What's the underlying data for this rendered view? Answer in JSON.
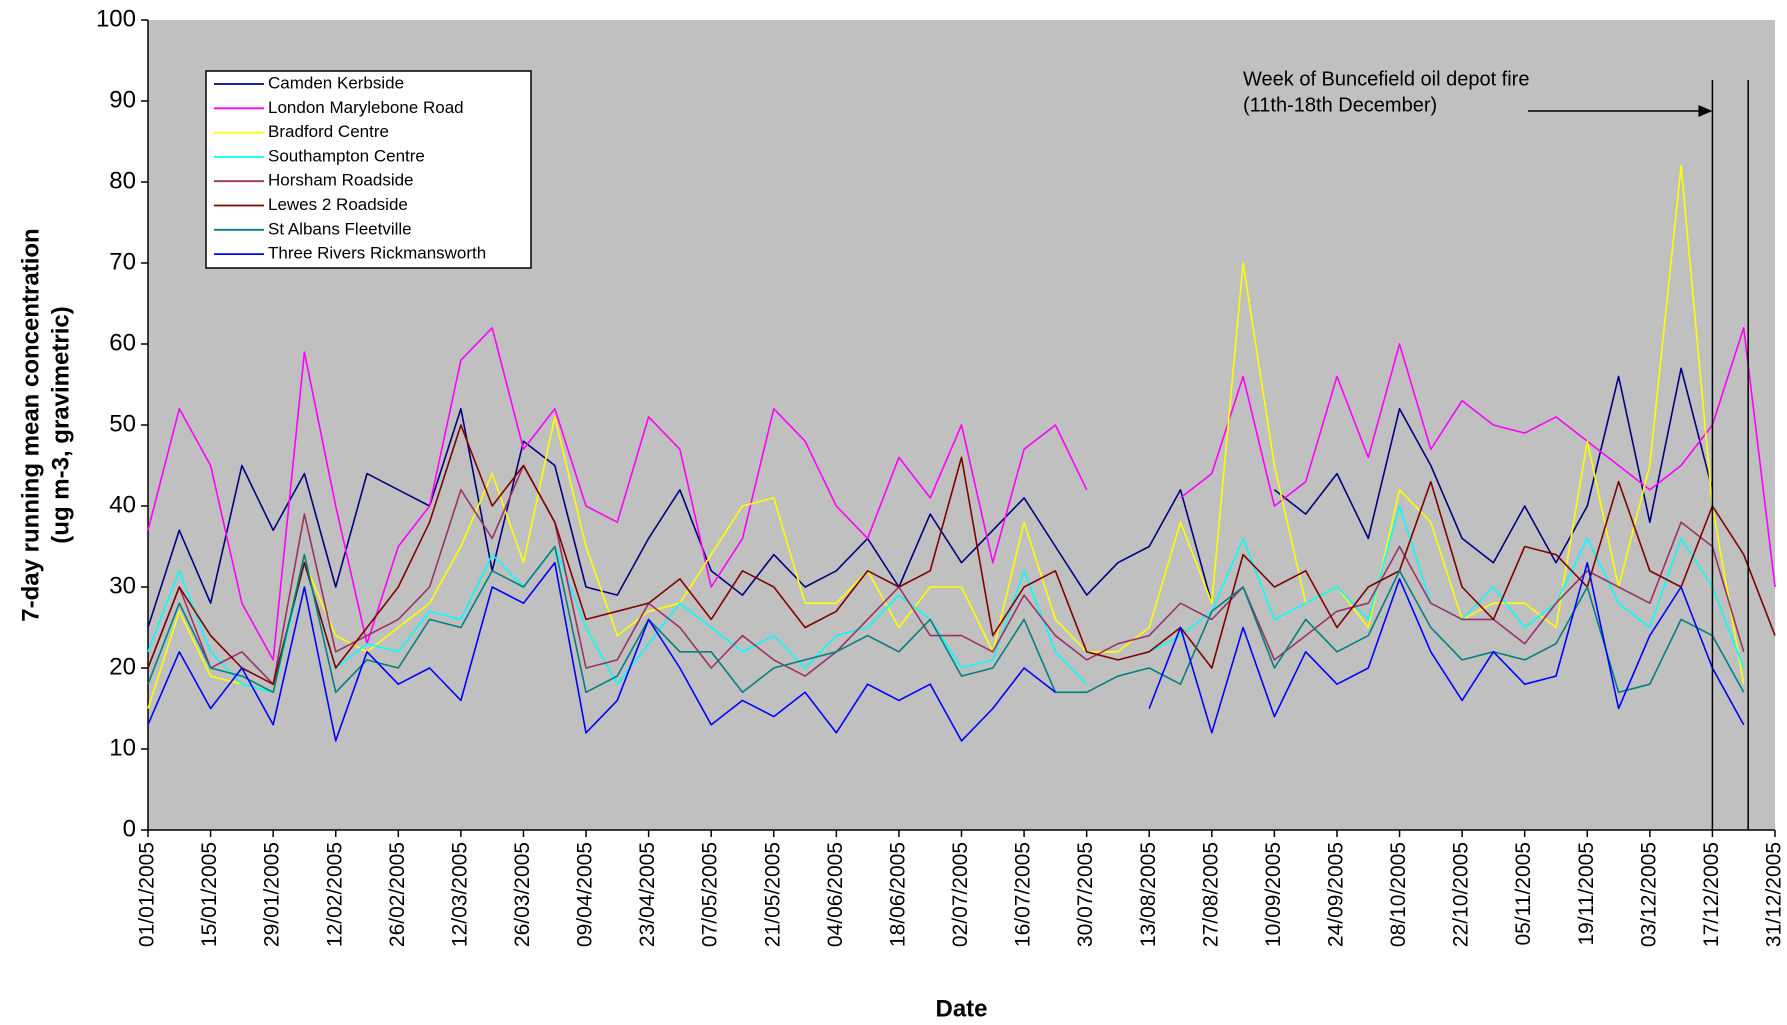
{
  "chart_data": {
    "type": "line",
    "ylabel": [
      "7-day running mean concentration",
      "(ug m-3, gravimetric)"
    ],
    "xlabel": "Date",
    "ylim": [
      0,
      100
    ],
    "yticks": [
      0,
      10,
      20,
      30,
      40,
      50,
      60,
      70,
      80,
      90,
      100
    ],
    "xlim": [
      "01/01/2005",
      "31/12/2005"
    ],
    "xticks": [
      "01/01/2005",
      "15/01/2005",
      "29/01/2005",
      "12/02/2005",
      "26/02/2005",
      "12/03/2005",
      "26/03/2005",
      "09/04/2005",
      "23/04/2005",
      "07/05/2005",
      "21/05/2005",
      "04/06/2005",
      "18/06/2005",
      "02/07/2005",
      "16/07/2005",
      "30/07/2005",
      "13/08/2005",
      "27/08/2005",
      "10/09/2005",
      "24/09/2005",
      "08/10/2005",
      "22/10/2005",
      "05/11/2005",
      "19/11/2005",
      "03/12/2005",
      "17/12/2005",
      "31/12/2005"
    ],
    "grid": false,
    "legend": "upper-left",
    "background": "#c0c0c0",
    "x": [
      "01/01/2005",
      "08/01/2005",
      "15/01/2005",
      "22/01/2005",
      "29/01/2005",
      "05/02/2005",
      "12/02/2005",
      "19/02/2005",
      "26/02/2005",
      "05/03/2005",
      "12/03/2005",
      "19/03/2005",
      "26/03/2005",
      "02/04/2005",
      "09/04/2005",
      "16/04/2005",
      "23/04/2005",
      "30/04/2005",
      "07/05/2005",
      "14/05/2005",
      "21/05/2005",
      "28/05/2005",
      "04/06/2005",
      "11/06/2005",
      "18/06/2005",
      "25/06/2005",
      "02/07/2005",
      "09/07/2005",
      "16/07/2005",
      "23/07/2005",
      "30/07/2005",
      "06/08/2005",
      "13/08/2005",
      "20/08/2005",
      "27/08/2005",
      "03/09/2005",
      "10/09/2005",
      "17/09/2005",
      "24/09/2005",
      "01/10/2005",
      "08/10/2005",
      "15/10/2005",
      "22/10/2005",
      "29/10/2005",
      "05/11/2005",
      "12/11/2005",
      "19/11/2005",
      "26/11/2005",
      "03/12/2005",
      "10/12/2005",
      "17/12/2005",
      "24/12/2005",
      "31/12/2005"
    ],
    "series": [
      {
        "name": "Camden Kerbside",
        "color": "#000080",
        "values": [
          25,
          37,
          28,
          45,
          37,
          44,
          30,
          44,
          42,
          40,
          52,
          32,
          48,
          45,
          30,
          29,
          36,
          42,
          32,
          29,
          34,
          30,
          32,
          36,
          30,
          39,
          33,
          37,
          41,
          35,
          29,
          33,
          35,
          42,
          28,
          null,
          42,
          39,
          44,
          36,
          52,
          45,
          36,
          33,
          40,
          33,
          40,
          56,
          38,
          57,
          42,
          null,
          null
        ]
      },
      {
        "name": "London Marylebone Road",
        "color": "#ff00ff",
        "values": [
          37,
          52,
          45,
          28,
          21,
          59,
          40,
          23,
          35,
          40,
          58,
          62,
          47,
          52,
          40,
          38,
          51,
          47,
          30,
          36,
          52,
          48,
          40,
          36,
          46,
          41,
          50,
          33,
          47,
          50,
          42,
          null,
          null,
          41,
          44,
          56,
          40,
          43,
          56,
          46,
          60,
          47,
          53,
          50,
          49,
          51,
          48,
          45,
          42,
          45,
          50,
          62,
          30
        ]
      },
      {
        "name": "Bradford Centre",
        "color": "#ffff00",
        "values": [
          15,
          27,
          19,
          18,
          17,
          33,
          24,
          22,
          25,
          28,
          35,
          44,
          33,
          51,
          35,
          24,
          27,
          28,
          34,
          40,
          41,
          28,
          28,
          32,
          25,
          30,
          30,
          22,
          38,
          26,
          22,
          22,
          25,
          38,
          28,
          70,
          45,
          28,
          30,
          25,
          42,
          38,
          26,
          28,
          28,
          25,
          48,
          30,
          45,
          82,
          40,
          18,
          null
        ]
      },
      {
        "name": "Southampton Centre",
        "color": "#00ffff",
        "values": [
          22,
          32,
          22,
          18,
          17,
          33,
          20,
          23,
          22,
          27,
          26,
          34,
          30,
          35,
          25,
          18,
          23,
          28,
          25,
          22,
          24,
          20,
          24,
          25,
          29,
          26,
          20,
          21,
          32,
          22,
          18,
          null,
          22,
          24,
          27,
          36,
          26,
          28,
          30,
          26,
          40,
          28,
          26,
          30,
          25,
          28,
          36,
          28,
          25,
          36,
          30,
          20,
          null
        ]
      },
      {
        "name": "Horsham Roadside",
        "color": "#993366",
        "values": [
          20,
          30,
          20,
          22,
          18,
          39,
          22,
          24,
          26,
          30,
          42,
          36,
          45,
          38,
          20,
          21,
          28,
          25,
          20,
          24,
          21,
          19,
          22,
          26,
          30,
          24,
          24,
          22,
          29,
          24,
          21,
          23,
          24,
          28,
          26,
          30,
          21,
          24,
          27,
          28,
          35,
          28,
          26,
          26,
          23,
          28,
          32,
          30,
          28,
          38,
          35,
          22,
          null
        ]
      },
      {
        "name": "Lewes 2 Roadside",
        "color": "#800000",
        "values": [
          20,
          30,
          24,
          20,
          18,
          33,
          20,
          25,
          30,
          38,
          50,
          40,
          45,
          38,
          26,
          27,
          28,
          31,
          26,
          32,
          30,
          25,
          27,
          32,
          30,
          32,
          46,
          24,
          30,
          32,
          22,
          21,
          22,
          25,
          20,
          34,
          30,
          32,
          25,
          30,
          32,
          43,
          30,
          26,
          35,
          34,
          30,
          43,
          32,
          30,
          40,
          34,
          24
        ]
      },
      {
        "name": "St Albans Fleetville",
        "color": "#008080",
        "values": [
          18,
          28,
          20,
          19,
          17,
          34,
          17,
          21,
          20,
          26,
          25,
          32,
          30,
          35,
          17,
          19,
          26,
          22,
          22,
          17,
          20,
          21,
          22,
          24,
          22,
          26,
          19,
          20,
          26,
          17,
          17,
          19,
          20,
          18,
          27,
          30,
          20,
          26,
          22,
          24,
          32,
          25,
          21,
          22,
          21,
          23,
          30,
          17,
          18,
          26,
          24,
          17,
          null
        ]
      },
      {
        "name": "Three Rivers Rickmansworth",
        "color": "#0000ff",
        "values": [
          13,
          22,
          15,
          20,
          13,
          30,
          11,
          22,
          18,
          20,
          16,
          30,
          28,
          33,
          12,
          16,
          26,
          20,
          13,
          16,
          14,
          17,
          12,
          18,
          16,
          18,
          11,
          15,
          20,
          17,
          null,
          null,
          15,
          25,
          12,
          25,
          14,
          22,
          18,
          20,
          31,
          22,
          16,
          22,
          18,
          19,
          33,
          15,
          24,
          30,
          20,
          13,
          null
        ]
      }
    ],
    "annotation": {
      "text": [
        "Week of Buncefield oil depot fire",
        "(11th-18th December)"
      ],
      "lines": [
        "17/12/2005",
        "25/12/2005"
      ]
    }
  }
}
